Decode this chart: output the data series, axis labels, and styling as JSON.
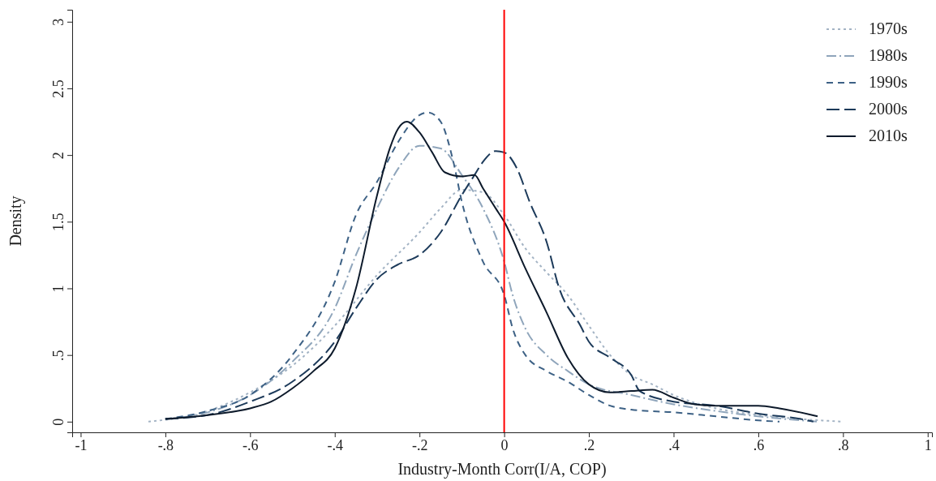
{
  "chart_data": {
    "type": "line",
    "xlabel": "Industry-Month Corr(I/A, COP)",
    "ylabel": "Density",
    "xlim": [
      -1.02,
      1.01
    ],
    "ylim": [
      -0.08,
      3.09
    ],
    "xticks": [
      {
        "value": -1,
        "label": "-1"
      },
      {
        "value": -0.8,
        "label": "-.8"
      },
      {
        "value": -0.6,
        "label": "-.6"
      },
      {
        "value": -0.4,
        "label": "-.4"
      },
      {
        "value": -0.2,
        "label": "-.2"
      },
      0,
      {
        "value": 0.2,
        "label": ".2"
      },
      {
        "value": 0.4,
        "label": ".4"
      },
      {
        "value": 0.6,
        "label": ".6"
      },
      {
        "value": 0.8,
        "label": ".8"
      },
      1
    ],
    "yticks": [
      0,
      {
        "value": 0.5,
        "label": ".5"
      },
      1,
      1.5,
      2,
      2.5,
      3
    ],
    "grid": false,
    "legend": "top right",
    "ref_lines": [
      {
        "axis": "x",
        "value": 0,
        "color": "#ff0000"
      }
    ],
    "series": [
      {
        "name": "1970s",
        "color": "#a3b3c4",
        "line_style": "dotted",
        "x": [
          -0.84,
          -0.7,
          -0.6,
          -0.5,
          -0.4,
          -0.3,
          -0.2,
          -0.15,
          -0.1,
          -0.05,
          0,
          0.05,
          0.1,
          0.15,
          0.2,
          0.25,
          0.3,
          0.35,
          0.4,
          0.5,
          0.6,
          0.7,
          0.8
        ],
        "values": [
          0,
          0.08,
          0.22,
          0.42,
          0.72,
          1.1,
          1.42,
          1.6,
          1.74,
          1.72,
          1.55,
          1.3,
          1.12,
          0.95,
          0.72,
          0.5,
          0.35,
          0.28,
          0.2,
          0.1,
          0.05,
          0.02,
          0
        ]
      },
      {
        "name": "1980s",
        "color": "#8fa5bb",
        "line_style": "dashdot",
        "x": [
          -0.8,
          -0.7,
          -0.6,
          -0.5,
          -0.4,
          -0.35,
          -0.3,
          -0.25,
          -0.2,
          -0.15,
          -0.1,
          -0.05,
          0,
          0.02,
          0.05,
          0.1,
          0.15,
          0.2,
          0.3,
          0.4,
          0.5,
          0.6,
          0.7,
          0.74
        ],
        "values": [
          0.02,
          0.07,
          0.2,
          0.45,
          0.85,
          1.25,
          1.6,
          1.9,
          2.07,
          2.05,
          1.85,
          1.6,
          1.2,
          0.95,
          0.7,
          0.5,
          0.38,
          0.28,
          0.2,
          0.13,
          0.08,
          0.04,
          0.01,
          0
        ]
      },
      {
        "name": "1990s",
        "color": "#3d6185",
        "line_style": "dashed",
        "x": [
          -0.8,
          -0.7,
          -0.6,
          -0.5,
          -0.4,
          -0.35,
          -0.3,
          -0.25,
          -0.2,
          -0.18,
          -0.15,
          -0.12,
          -0.1,
          -0.05,
          0,
          0.02,
          0.05,
          0.1,
          0.15,
          0.2,
          0.25,
          0.3,
          0.4,
          0.5,
          0.6,
          0.65
        ],
        "values": [
          0.02,
          0.08,
          0.2,
          0.5,
          1.05,
          1.55,
          1.8,
          2.1,
          2.3,
          2.32,
          2.25,
          1.95,
          1.65,
          1.2,
          0.95,
          0.7,
          0.5,
          0.38,
          0.3,
          0.2,
          0.12,
          0.09,
          0.07,
          0.04,
          0.01,
          0
        ]
      },
      {
        "name": "2000s",
        "color": "#1c3a5a",
        "line_style": "longdash",
        "x": [
          -0.8,
          -0.7,
          -0.6,
          -0.5,
          -0.4,
          -0.35,
          -0.3,
          -0.25,
          -0.2,
          -0.15,
          -0.1,
          -0.07,
          -0.05,
          -0.02,
          0,
          0.03,
          0.06,
          0.1,
          0.13,
          0.18,
          0.2,
          0.25,
          0.3,
          0.32,
          0.4,
          0.5,
          0.6,
          0.7,
          0.73
        ],
        "values": [
          0.02,
          0.05,
          0.15,
          0.3,
          0.6,
          0.85,
          1.07,
          1.18,
          1.25,
          1.42,
          1.7,
          1.85,
          1.95,
          2.03,
          2.02,
          1.9,
          1.65,
          1.35,
          1.0,
          0.72,
          0.6,
          0.48,
          0.35,
          0.23,
          0.15,
          0.12,
          0.06,
          0.02,
          0
        ]
      },
      {
        "name": "2010s",
        "color": "#0d1a2b",
        "line_style": "solid",
        "x": [
          -0.8,
          -0.7,
          -0.6,
          -0.55,
          -0.5,
          -0.45,
          -0.4,
          -0.35,
          -0.3,
          -0.27,
          -0.25,
          -0.23,
          -0.2,
          -0.17,
          -0.14,
          -0.1,
          -0.07,
          -0.05,
          -0.02,
          0,
          0.05,
          0.1,
          0.15,
          0.2,
          0.25,
          0.3,
          0.35,
          0.4,
          0.45,
          0.5,
          0.6,
          0.65,
          0.74
        ],
        "values": [
          0.02,
          0.05,
          0.1,
          0.15,
          0.25,
          0.38,
          0.55,
          1.0,
          1.7,
          2.05,
          2.2,
          2.25,
          2.17,
          2.02,
          1.87,
          1.84,
          1.85,
          1.75,
          1.6,
          1.5,
          1.15,
          0.82,
          0.48,
          0.28,
          0.22,
          0.23,
          0.24,
          0.18,
          0.13,
          0.12,
          0.12,
          0.1,
          0.04
        ]
      }
    ]
  }
}
